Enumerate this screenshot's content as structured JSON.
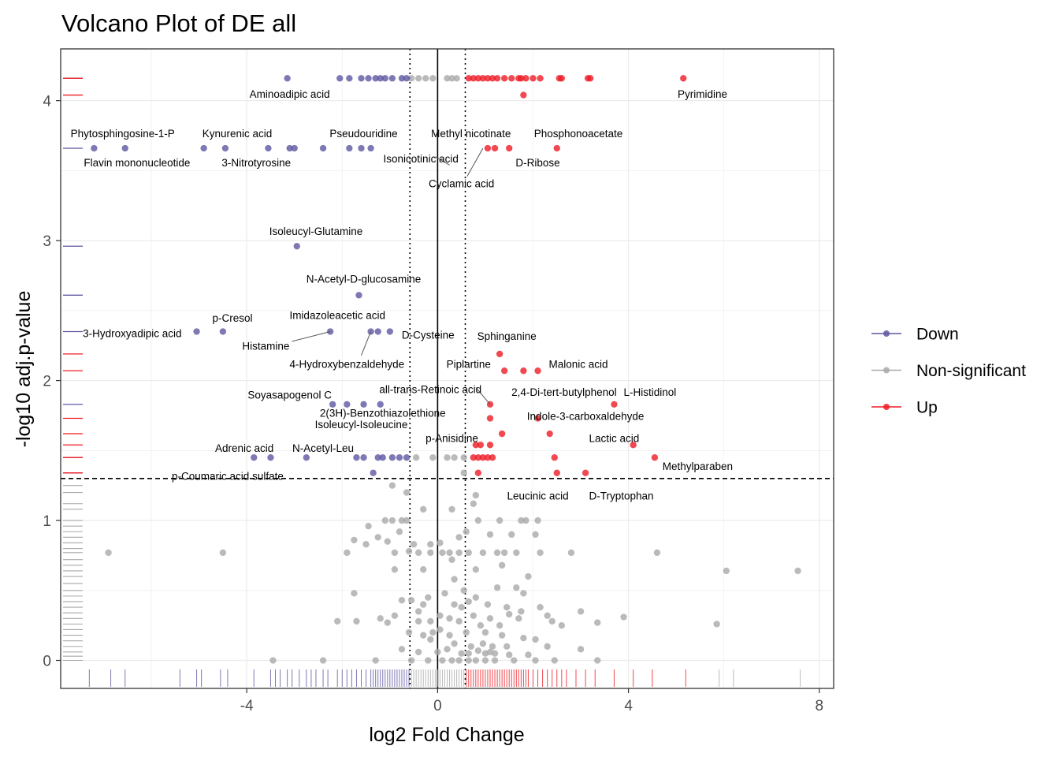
{
  "chart_data": {
    "type": "scatter",
    "title": "Volcano Plot of DE all",
    "xlabel": "log2 Fold Change",
    "ylabel": "-log10 adj.p-value",
    "xlim": [
      -7.9,
      8.3
    ],
    "ylim": [
      -0.2,
      4.37
    ],
    "x_ticks": [
      -4,
      0,
      4,
      8
    ],
    "y_ticks": [
      0,
      1,
      2,
      3,
      4
    ],
    "grid": true,
    "legend_position": "right",
    "thresholds": {
      "log2fc": [
        -0.58,
        0.58
      ],
      "neg_log10_padj": 1.3,
      "zero_line": 0
    },
    "colors": {
      "Down": "#5e57a1",
      "Non-significant": "#a9a9a9",
      "Up": "#ee1c25"
    },
    "legend": [
      {
        "key": "Down",
        "label": "Down"
      },
      {
        "key": "Non-significant",
        "label": "Non-significant"
      },
      {
        "key": "Up",
        "label": "Up"
      }
    ],
    "down": [
      [
        -3.15,
        4.16
      ],
      [
        -2.05,
        4.16
      ],
      [
        -1.85,
        4.16
      ],
      [
        -1.6,
        4.16
      ],
      [
        -1.45,
        4.16
      ],
      [
        -1.3,
        4.16
      ],
      [
        -1.2,
        4.16
      ],
      [
        -1.1,
        4.16
      ],
      [
        -0.95,
        4.16
      ],
      [
        -0.75,
        4.16
      ],
      [
        -0.65,
        4.16
      ],
      [
        -7.2,
        3.66
      ],
      [
        -6.55,
        3.66
      ],
      [
        -4.9,
        3.66
      ],
      [
        -4.45,
        3.66
      ],
      [
        -3.55,
        3.66
      ],
      [
        -3.1,
        3.66
      ],
      [
        -3.0,
        3.66
      ],
      [
        -2.4,
        3.66
      ],
      [
        -1.85,
        3.66
      ],
      [
        -1.6,
        3.66
      ],
      [
        -1.4,
        3.66
      ],
      [
        -2.95,
        2.96
      ],
      [
        -1.65,
        2.61
      ],
      [
        -5.05,
        2.35
      ],
      [
        -4.5,
        2.35
      ],
      [
        -2.25,
        2.35
      ],
      [
        -1.4,
        2.35
      ],
      [
        -1.25,
        2.35
      ],
      [
        -1.0,
        2.35
      ],
      [
        -2.2,
        1.83
      ],
      [
        -1.9,
        1.83
      ],
      [
        -1.55,
        1.83
      ],
      [
        -1.2,
        1.83
      ],
      [
        -3.85,
        1.45
      ],
      [
        -3.5,
        1.45
      ],
      [
        -2.75,
        1.45
      ],
      [
        -1.7,
        1.45
      ],
      [
        -1.55,
        1.45
      ],
      [
        -1.25,
        1.45
      ],
      [
        -1.15,
        1.45
      ],
      [
        -0.95,
        1.45
      ],
      [
        -0.8,
        1.45
      ],
      [
        -0.65,
        1.45
      ],
      [
        -1.35,
        1.34
      ]
    ],
    "up": [
      [
        0.65,
        4.16
      ],
      [
        0.75,
        4.16
      ],
      [
        0.85,
        4.16
      ],
      [
        0.95,
        4.16
      ],
      [
        1.05,
        4.16
      ],
      [
        1.15,
        4.16
      ],
      [
        1.25,
        4.16
      ],
      [
        1.4,
        4.16
      ],
      [
        1.55,
        4.16
      ],
      [
        1.7,
        4.16
      ],
      [
        1.75,
        4.16
      ],
      [
        1.85,
        4.16
      ],
      [
        2.0,
        4.16
      ],
      [
        2.15,
        4.16
      ],
      [
        2.55,
        4.16
      ],
      [
        2.6,
        4.16
      ],
      [
        3.15,
        4.16
      ],
      [
        3.2,
        4.16
      ],
      [
        5.15,
        4.16
      ],
      [
        1.8,
        4.04
      ],
      [
        1.05,
        3.66
      ],
      [
        1.2,
        3.66
      ],
      [
        1.5,
        3.66
      ],
      [
        2.5,
        3.66
      ],
      [
        1.3,
        2.19
      ],
      [
        1.4,
        2.07
      ],
      [
        1.8,
        2.07
      ],
      [
        2.1,
        2.07
      ],
      [
        1.1,
        1.83
      ],
      [
        3.7,
        1.83
      ],
      [
        1.1,
        1.73
      ],
      [
        2.1,
        1.73
      ],
      [
        1.35,
        1.62
      ],
      [
        2.35,
        1.62
      ],
      [
        1.1,
        1.54
      ],
      [
        0.8,
        1.54
      ],
      [
        0.9,
        1.54
      ],
      [
        4.1,
        1.54
      ],
      [
        0.75,
        1.45
      ],
      [
        0.85,
        1.45
      ],
      [
        0.95,
        1.45
      ],
      [
        1.05,
        1.45
      ],
      [
        1.15,
        1.45
      ],
      [
        2.45,
        1.45
      ],
      [
        4.55,
        1.45
      ],
      [
        0.85,
        1.34
      ],
      [
        2.5,
        1.34
      ],
      [
        3.1,
        1.34
      ]
    ],
    "ns": [
      [
        -0.55,
        4.16
      ],
      [
        -0.4,
        4.16
      ],
      [
        -0.25,
        4.16
      ],
      [
        -0.1,
        4.16
      ],
      [
        0.2,
        4.16
      ],
      [
        0.3,
        4.16
      ],
      [
        0.4,
        4.16
      ],
      [
        -0.45,
        1.45
      ],
      [
        -0.1,
        1.45
      ],
      [
        0.2,
        1.45
      ],
      [
        0.35,
        1.45
      ],
      [
        0.55,
        1.45
      ],
      [
        0.55,
        1.34
      ],
      [
        -0.95,
        1.25
      ],
      [
        -0.65,
        1.2
      ],
      [
        0.8,
        1.18
      ],
      [
        0.75,
        1.12
      ],
      [
        -0.3,
        1.08
      ],
      [
        0.3,
        1.08
      ],
      [
        -0.65,
        1.0
      ],
      [
        -1.1,
        1.0
      ],
      [
        -0.95,
        1.0
      ],
      [
        -0.75,
        1.0
      ],
      [
        0.85,
        1.0
      ],
      [
        1.3,
        1.0
      ],
      [
        1.75,
        1.0
      ],
      [
        1.85,
        1.0
      ],
      [
        2.1,
        1.0
      ],
      [
        -1.45,
        0.96
      ],
      [
        -0.8,
        0.92
      ],
      [
        0.6,
        0.92
      ],
      [
        0.45,
        0.88
      ],
      [
        1.1,
        0.9
      ],
      [
        1.55,
        0.9
      ],
      [
        2.05,
        0.9
      ],
      [
        -1.5,
        0.83
      ],
      [
        -1.75,
        0.86
      ],
      [
        -1.25,
        0.88
      ],
      [
        -1.05,
        0.85
      ],
      [
        -0.6,
        0.78
      ],
      [
        -6.9,
        0.77
      ],
      [
        -4.5,
        0.77
      ],
      [
        -1.9,
        0.77
      ],
      [
        -0.9,
        0.77
      ],
      [
        -0.4,
        0.77
      ],
      [
        -0.15,
        0.77
      ],
      [
        0.1,
        0.77
      ],
      [
        0.25,
        0.77
      ],
      [
        0.45,
        0.77
      ],
      [
        0.65,
        0.77
      ],
      [
        0.95,
        0.77
      ],
      [
        1.25,
        0.77
      ],
      [
        1.4,
        0.77
      ],
      [
        1.65,
        0.77
      ],
      [
        2.15,
        0.77
      ],
      [
        2.8,
        0.77
      ],
      [
        4.6,
        0.77
      ],
      [
        -0.5,
        0.83
      ],
      [
        0.05,
        0.84
      ],
      [
        -0.15,
        0.83
      ],
      [
        0.3,
        0.72
      ],
      [
        1.35,
        0.68
      ],
      [
        -0.9,
        0.65
      ],
      [
        -0.3,
        0.65
      ],
      [
        0.8,
        0.65
      ],
      [
        0.55,
        0.5
      ],
      [
        1.9,
        0.6
      ],
      [
        6.05,
        0.64
      ],
      [
        7.55,
        0.64
      ],
      [
        0.35,
        0.58
      ],
      [
        1.25,
        0.52
      ],
      [
        -1.75,
        0.48
      ],
      [
        1.65,
        0.52
      ],
      [
        1.8,
        0.48
      ],
      [
        0.15,
        0.48
      ],
      [
        0.8,
        0.45
      ],
      [
        0.35,
        0.4
      ],
      [
        -0.2,
        0.45
      ],
      [
        -0.75,
        0.43
      ],
      [
        -0.55,
        0.43
      ],
      [
        -0.3,
        0.4
      ],
      [
        0.5,
        0.38
      ],
      [
        0.65,
        0.42
      ],
      [
        1.05,
        0.4
      ],
      [
        1.45,
        0.38
      ],
      [
        1.75,
        0.35
      ],
      [
        2.15,
        0.38
      ],
      [
        2.3,
        0.32
      ],
      [
        -1.2,
        0.3
      ],
      [
        -0.9,
        0.32
      ],
      [
        -0.4,
        0.35
      ],
      [
        0.05,
        0.32
      ],
      [
        0.25,
        0.3
      ],
      [
        0.45,
        0.28
      ],
      [
        0.75,
        0.32
      ],
      [
        1.1,
        0.3
      ],
      [
        1.5,
        0.33
      ],
      [
        1.7,
        0.3
      ],
      [
        2.4,
        0.28
      ],
      [
        3.0,
        0.35
      ],
      [
        3.35,
        0.27
      ],
      [
        3.9,
        0.31
      ],
      [
        -2.1,
        0.28
      ],
      [
        -1.7,
        0.28
      ],
      [
        -1.05,
        0.27
      ],
      [
        -0.4,
        0.28
      ],
      [
        -0.15,
        0.28
      ],
      [
        0.05,
        0.22
      ],
      [
        0.9,
        0.25
      ],
      [
        1.3,
        0.25
      ],
      [
        2.6,
        0.25
      ],
      [
        5.85,
        0.26
      ],
      [
        -0.6,
        0.2
      ],
      [
        -0.3,
        0.18
      ],
      [
        -0.1,
        0.2
      ],
      [
        0.25,
        0.18
      ],
      [
        0.6,
        0.2
      ],
      [
        1.0,
        0.2
      ],
      [
        1.35,
        0.18
      ],
      [
        1.8,
        0.16
      ],
      [
        2.05,
        0.15
      ],
      [
        -0.15,
        0.15
      ],
      [
        0.35,
        0.12
      ],
      [
        0.7,
        0.1
      ],
      [
        0.95,
        0.12
      ],
      [
        1.15,
        0.1
      ],
      [
        1.45,
        0.1
      ],
      [
        2.3,
        0.1
      ],
      [
        3.0,
        0.08
      ],
      [
        -0.75,
        0.08
      ],
      [
        -0.4,
        0.06
      ],
      [
        0.0,
        0.06
      ],
      [
        0.2,
        0.08
      ],
      [
        0.5,
        0.05
      ],
      [
        0.65,
        0.05
      ],
      [
        0.85,
        0.07
      ],
      [
        1.0,
        0.05
      ],
      [
        1.1,
        0.06
      ],
      [
        1.2,
        0.05
      ],
      [
        1.5,
        0.04
      ],
      [
        1.9,
        0.04
      ],
      [
        -3.45,
        0.0
      ],
      [
        -2.4,
        0.0
      ],
      [
        -1.3,
        0.0
      ],
      [
        -0.55,
        0.0
      ],
      [
        -0.2,
        0.0
      ],
      [
        0.1,
        0.0
      ],
      [
        0.3,
        0.0
      ],
      [
        0.45,
        0.0
      ],
      [
        0.65,
        0.0
      ],
      [
        0.8,
        0.0
      ],
      [
        1.0,
        0.0
      ],
      [
        1.2,
        0.0
      ],
      [
        1.6,
        0.0
      ],
      [
        2.05,
        0.0
      ],
      [
        2.45,
        0.0
      ],
      [
        3.35,
        0.0
      ]
    ],
    "annotations": [
      {
        "text": "Aminoadipic acid",
        "x": -3.1,
        "y": 4.04
      },
      {
        "text": "Pyrimidine",
        "x": 5.55,
        "y": 4.04
      },
      {
        "text": "Phytosphingosine-1-P",
        "x": -6.6,
        "y": 3.76
      },
      {
        "text": "Kynurenic acid",
        "x": -4.2,
        "y": 3.76
      },
      {
        "text": "Pseudouridine",
        "x": -1.55,
        "y": 3.76
      },
      {
        "text": "Methyl nicotinate",
        "x": 0.7,
        "y": 3.76
      },
      {
        "text": "Phosphonoacetate",
        "x": 2.95,
        "y": 3.76
      },
      {
        "text": "Flavin mononucleotide",
        "x": -6.3,
        "y": 3.55
      },
      {
        "text": "3-Nitrotyrosine",
        "x": -3.8,
        "y": 3.55
      },
      {
        "text": "Isonicotinic acid",
        "x": -0.35,
        "y": 3.58
      },
      {
        "text": "D-Ribose",
        "x": 2.1,
        "y": 3.55
      },
      {
        "text": "Cyclamic acid",
        "x": 0.5,
        "y": 3.4
      },
      {
        "text": "Isoleucyl-Glutamine",
        "x": -2.55,
        "y": 3.06
      },
      {
        "text": "N-Acetyl-D-glucosamine",
        "x": -1.55,
        "y": 2.72
      },
      {
        "text": "p-Cresol",
        "x": -4.3,
        "y": 2.44
      },
      {
        "text": "Imidazoleacetic acid",
        "x": -2.1,
        "y": 2.46
      },
      {
        "text": "3-Hydroxyadipic acid",
        "x": -6.4,
        "y": 2.33
      },
      {
        "text": "D-Cysteine",
        "x": -0.2,
        "y": 2.32
      },
      {
        "text": "Sphinganine",
        "x": 1.45,
        "y": 2.31
      },
      {
        "text": "Histamine",
        "x": -3.6,
        "y": 2.24
      },
      {
        "text": "4-Hydroxybenzaldehyde",
        "x": -1.9,
        "y": 2.11
      },
      {
        "text": "Piplartine",
        "x": 0.65,
        "y": 2.11
      },
      {
        "text": "Malonic acid",
        "x": 2.95,
        "y": 2.11
      },
      {
        "text": "all-trans-Retinoic acid",
        "x": -0.15,
        "y": 1.93
      },
      {
        "text": "2,4-Di-tert-butylphenol",
        "x": 2.65,
        "y": 1.91
      },
      {
        "text": "L-Histidinol",
        "x": 4.45,
        "y": 1.91
      },
      {
        "text": "Soyasapogenol C",
        "x": -3.1,
        "y": 1.89
      },
      {
        "text": "2(3H)-Benzothiazolethione",
        "x": -1.15,
        "y": 1.76
      },
      {
        "text": "Indole-3-carboxaldehyde",
        "x": 3.1,
        "y": 1.74
      },
      {
        "text": "Isoleucyl-Isoleucine",
        "x": -1.6,
        "y": 1.68
      },
      {
        "text": "p-Anisidine",
        "x": 0.3,
        "y": 1.58
      },
      {
        "text": "Lactic acid",
        "x": 3.7,
        "y": 1.58
      },
      {
        "text": "Adrenic acid",
        "x": -4.05,
        "y": 1.51
      },
      {
        "text": "N-Acetyl-Leu",
        "x": -2.4,
        "y": 1.51
      },
      {
        "text": "Methylparaben",
        "x": 5.45,
        "y": 1.38
      },
      {
        "text": "p-Coumaric acid sulfate",
        "x": -4.4,
        "y": 1.31
      },
      {
        "text": "Leucinic acid",
        "x": 2.1,
        "y": 1.17
      },
      {
        "text": "D-Tryptophan",
        "x": 3.85,
        "y": 1.17
      }
    ],
    "connectors": [
      [
        [
          0.25,
          3.54
        ],
        [
          -0.05,
          3.6
        ]
      ],
      [
        [
          0.95,
          3.66
        ],
        [
          0.62,
          3.46
        ]
      ],
      [
        [
          -2.25,
          2.35
        ],
        [
          -3.05,
          2.28
        ]
      ],
      [
        [
          -1.4,
          2.35
        ],
        [
          -1.6,
          2.18
        ]
      ],
      [
        [
          1.1,
          1.83
        ],
        [
          0.8,
          1.95
        ]
      ]
    ],
    "rug_x": [
      -7.3,
      -6.85,
      -6.55,
      -5.4,
      -5.05,
      -4.95,
      -4.55,
      -4.4,
      -3.85,
      -3.5,
      -3.4,
      -3.3,
      -3.15,
      -3.05,
      -2.9,
      -2.75,
      -2.65,
      -2.55,
      -2.4,
      -2.3,
      -2.1,
      -2.0,
      -1.9,
      -1.8,
      -1.7,
      -1.6,
      -1.5,
      -1.4,
      -1.35,
      -1.3,
      -1.25,
      -1.2,
      -1.15,
      -1.1,
      -1.05,
      -1.0,
      -0.95,
      -0.9,
      -0.85,
      -0.8,
      -0.75,
      -0.7,
      -0.65,
      -0.6
    ],
    "rug_x_ns": [
      -0.55,
      -0.5,
      -0.45,
      -0.4,
      -0.35,
      -0.3,
      -0.25,
      -0.2,
      -0.15,
      -0.1,
      -0.05,
      0.0,
      0.05,
      0.1,
      0.15,
      0.2,
      0.25,
      0.3,
      0.35,
      0.4,
      0.45,
      0.5,
      0.55,
      5.9,
      6.2,
      7.6
    ],
    "rug_x_up": [
      0.6,
      0.65,
      0.7,
      0.75,
      0.8,
      0.85,
      0.9,
      0.95,
      1.0,
      1.05,
      1.1,
      1.15,
      1.2,
      1.25,
      1.3,
      1.35,
      1.4,
      1.45,
      1.5,
      1.55,
      1.6,
      1.65,
      1.7,
      1.75,
      1.8,
      1.85,
      1.9,
      2.0,
      2.1,
      2.2,
      2.3,
      2.4,
      2.5,
      2.6,
      2.7,
      2.9,
      3.1,
      3.3,
      3.7,
      4.1,
      4.5,
      5.2
    ],
    "rug_y_down": [
      4.16,
      3.66,
      2.96,
      2.61,
      2.35,
      1.83,
      1.45,
      1.34
    ],
    "rug_y_up": [
      4.16,
      4.04,
      2.19,
      2.07,
      1.73,
      1.62,
      1.54,
      1.45,
      1.34
    ],
    "rug_y_ns": [
      1.25,
      1.2,
      1.12,
      1.08,
      1.0,
      0.96,
      0.92,
      0.88,
      0.84,
      0.8,
      0.77,
      0.72,
      0.68,
      0.64,
      0.6,
      0.55,
      0.5,
      0.46,
      0.42,
      0.38,
      0.34,
      0.3,
      0.26,
      0.22,
      0.18,
      0.14,
      0.1,
      0.06,
      0.03,
      0.0
    ]
  }
}
